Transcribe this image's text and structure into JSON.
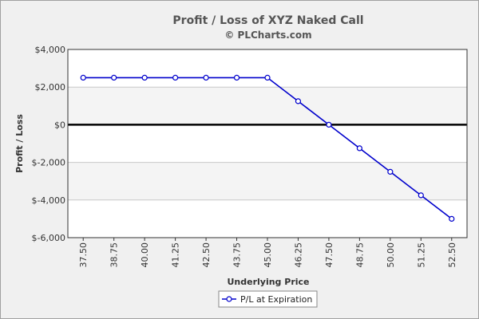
{
  "chart_data": {
    "type": "line",
    "title": "Profit / Loss of XYZ Naked Call",
    "subtitle": "© PLCharts.com",
    "xlabel": "Underlying Price",
    "ylabel": "Profit / Loss",
    "ylim": [
      -6000,
      4000
    ],
    "y_ticks": [
      4000,
      2000,
      0,
      -2000,
      -4000,
      -6000
    ],
    "y_tick_labels": [
      "$4,000",
      "$2,000",
      "$0",
      "$-2,000",
      "$-4,000",
      "$-6,000"
    ],
    "categories": [
      "37.50",
      "38.75",
      "40.00",
      "41.25",
      "42.50",
      "43.75",
      "45.00",
      "46.25",
      "47.50",
      "48.75",
      "50.00",
      "51.25",
      "52.50"
    ],
    "series": [
      {
        "name": "P/L at Expiration",
        "color": "#0000cc",
        "values": [
          2500,
          2500,
          2500,
          2500,
          2500,
          2500,
          2500,
          1250,
          0,
          -1250,
          -2500,
          -3750,
          -5000
        ]
      }
    ],
    "zero_line": true,
    "grid": true,
    "legend_position": "bottom"
  }
}
